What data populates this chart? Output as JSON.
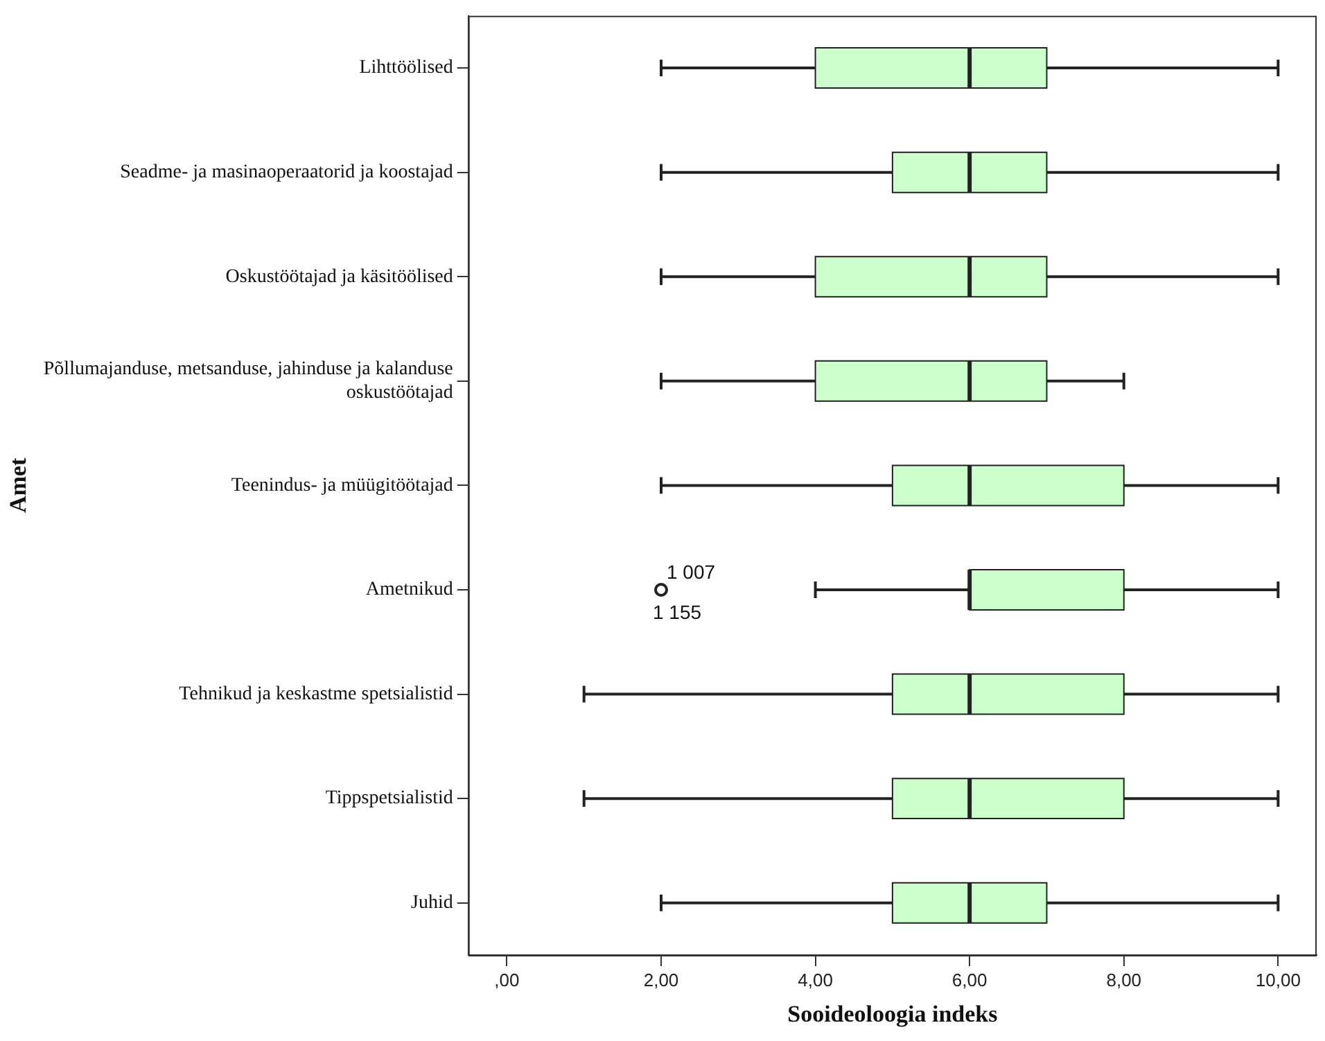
{
  "chart_data": {
    "type": "box",
    "orientation": "horizontal",
    "xlabel": "Sooideoloogia indeks",
    "ylabel": "Amet",
    "categories": [
      "Lihttöölised",
      "Seadme- ja masinaoperaatorid ja koostajad",
      "Oskustöötajad ja käsitöölised",
      "Põllumajanduse, metsanduse, jahinduse ja kalanduse\noskustöötajad",
      "Teenindus- ja müügitöötajad",
      "Ametnikud",
      "Tehnikud ja keskastme spetsialistid",
      "Tippspetsialistid",
      "Juhid"
    ],
    "color": "#ccffcc",
    "boxes": [
      {
        "low": 2,
        "q1": 4,
        "median": 6,
        "q3": 7,
        "high": 10
      },
      {
        "low": 2,
        "q1": 5,
        "median": 6,
        "q3": 7,
        "high": 10
      },
      {
        "low": 2,
        "q1": 4,
        "median": 6,
        "q3": 7,
        "high": 10
      },
      {
        "low": 2,
        "q1": 4,
        "median": 6,
        "q3": 7,
        "high": 8
      },
      {
        "low": 2,
        "q1": 5,
        "median": 6,
        "q3": 8,
        "high": 10
      },
      {
        "low": 4,
        "q1": 6,
        "median": 6,
        "q3": 8,
        "high": 10,
        "outliers": [
          2
        ]
      },
      {
        "low": 1,
        "q1": 5,
        "median": 6,
        "q3": 8,
        "high": 10
      },
      {
        "low": 1,
        "q1": 5,
        "median": 6,
        "q3": 8,
        "high": 10
      },
      {
        "low": 2,
        "q1": 5,
        "median": 6,
        "q3": 7,
        "high": 10
      }
    ],
    "xlim": [
      -0.5,
      10.5
    ],
    "xticks": [
      {
        "value": 0,
        "label": ",00"
      },
      {
        "value": 2,
        "label": "2,00"
      },
      {
        "value": 4,
        "label": "4,00"
      },
      {
        "value": 6,
        "label": "6,00"
      },
      {
        "value": 8,
        "label": "8,00"
      },
      {
        "value": 10,
        "label": "10,00"
      }
    ],
    "annotations": [
      "1 007",
      "1 155"
    ],
    "grid": false,
    "legend": false
  }
}
